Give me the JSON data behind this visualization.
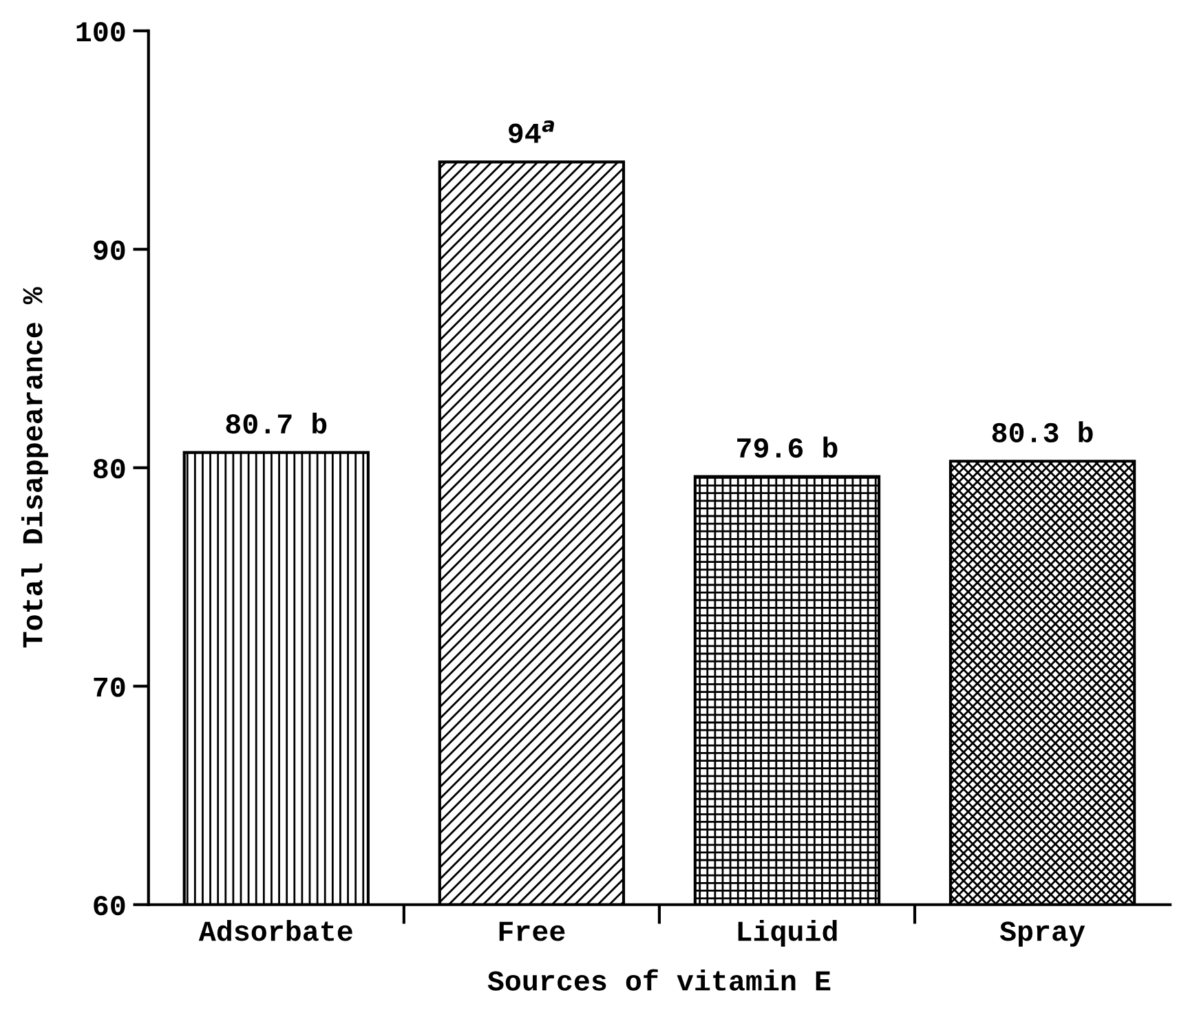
{
  "chart_data": {
    "type": "bar",
    "xlabel": "Sources of vitamin E",
    "ylabel": "Total Disappearance %",
    "categories": [
      "Adsorbate",
      "Free",
      "Liquid",
      "Spray"
    ],
    "values": [
      80.7,
      94,
      79.6,
      80.3
    ],
    "value_labels": [
      "80.7 b",
      "94$^{a}$",
      "79.6 b",
      "80.3 b"
    ],
    "color": "#000000",
    "ylim": [
      60,
      100
    ],
    "yticks": [
      60,
      70,
      80,
      90,
      100
    ],
    "grid": false,
    "legend": false
  }
}
